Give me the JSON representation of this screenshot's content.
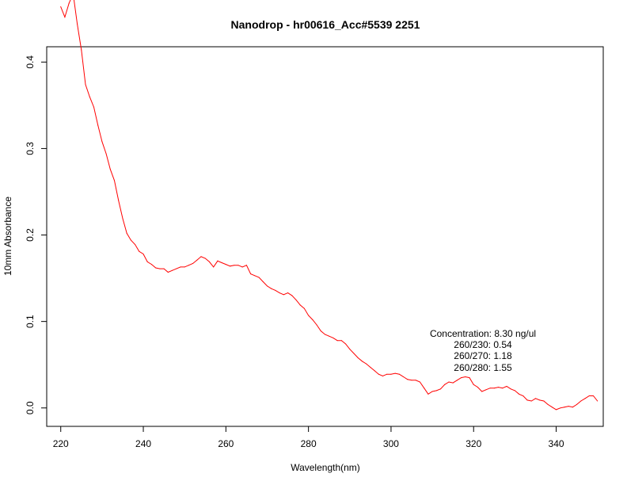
{
  "chart_data": {
    "type": "line",
    "title": "Nanodrop - hr00616_Acc#5539  2251",
    "xlabel": "Wavelength(nm)",
    "ylabel": "10mm Absorbance",
    "xlim": [
      216.6,
      351.4
    ],
    "ylim": [
      -0.0213,
      0.4177
    ],
    "x_ticks": [
      220,
      240,
      260,
      280,
      300,
      320,
      340
    ],
    "x_tick_labels": [
      "220",
      "240",
      "260",
      "280",
      "300",
      "320",
      "340"
    ],
    "y_ticks": [
      0.0,
      0.1,
      0.2,
      0.3,
      0.4
    ],
    "y_tick_labels": [
      "0.0",
      "0.1",
      "0.2",
      "0.3",
      "0.4"
    ],
    "series": [
      {
        "color": "#ff0000",
        "x": [
          220,
          221,
          222,
          223,
          224,
          225,
          226,
          227,
          228,
          229,
          230,
          231,
          232,
          233,
          234,
          235,
          236,
          237,
          238,
          239,
          240,
          241,
          242,
          243,
          244,
          245,
          246,
          247,
          248,
          249,
          250,
          251,
          252,
          253,
          254,
          255,
          256,
          257,
          258,
          259,
          260,
          261,
          262,
          263,
          264,
          265,
          266,
          267,
          268,
          269,
          270,
          271,
          272,
          273,
          274,
          275,
          276,
          277,
          278,
          279,
          280,
          281,
          282,
          283,
          284,
          285,
          286,
          287,
          288,
          289,
          290,
          291,
          292,
          293,
          294,
          295,
          296,
          297,
          298,
          299,
          300,
          301,
          302,
          303,
          304,
          305,
          306,
          307,
          308,
          309,
          310,
          311,
          312,
          313,
          314,
          315,
          316,
          317,
          318,
          319,
          320,
          321,
          322,
          323,
          324,
          325,
          326,
          327,
          328,
          329,
          330,
          331,
          332,
          333,
          334,
          335,
          336,
          337,
          338,
          339,
          340,
          341,
          342,
          343,
          344,
          345,
          346,
          347,
          348,
          349,
          350
        ],
        "values": [
          0.464,
          0.452,
          0.468,
          0.479,
          0.444,
          0.414,
          0.374,
          0.36,
          0.348,
          0.327,
          0.308,
          0.294,
          0.276,
          0.263,
          0.24,
          0.219,
          0.202,
          0.194,
          0.189,
          0.181,
          0.178,
          0.169,
          0.166,
          0.162,
          0.161,
          0.161,
          0.157,
          0.159,
          0.161,
          0.163,
          0.163,
          0.165,
          0.167,
          0.171,
          0.175,
          0.173,
          0.169,
          0.163,
          0.17,
          0.168,
          0.166,
          0.164,
          0.165,
          0.165,
          0.163,
          0.165,
          0.155,
          0.153,
          0.151,
          0.146,
          0.141,
          0.138,
          0.136,
          0.133,
          0.131,
          0.133,
          0.13,
          0.125,
          0.119,
          0.115,
          0.107,
          0.102,
          0.096,
          0.089,
          0.085,
          0.083,
          0.081,
          0.078,
          0.078,
          0.074,
          0.068,
          0.063,
          0.058,
          0.054,
          0.051,
          0.047,
          0.043,
          0.039,
          0.037,
          0.039,
          0.039,
          0.04,
          0.039,
          0.036,
          0.033,
          0.032,
          0.032,
          0.03,
          0.023,
          0.016,
          0.019,
          0.02,
          0.022,
          0.027,
          0.03,
          0.029,
          0.032,
          0.035,
          0.036,
          0.035,
          0.027,
          0.024,
          0.019,
          0.021,
          0.023,
          0.023,
          0.024,
          0.023,
          0.025,
          0.022,
          0.02,
          0.016,
          0.014,
          0.009,
          0.008,
          0.011,
          0.009,
          0.008,
          0.004,
          0.001,
          -0.002,
          0.0,
          0.001,
          0.002,
          0.001,
          0.004,
          0.008,
          0.011,
          0.014,
          0.014,
          0.008
        ]
      }
    ],
    "annotations": [
      "Concentration: 8.30 ng/ul",
      "260/230: 0.54",
      "260/270: 1.18",
      "260/280: 1.55"
    ],
    "grid": false,
    "legend": false
  }
}
